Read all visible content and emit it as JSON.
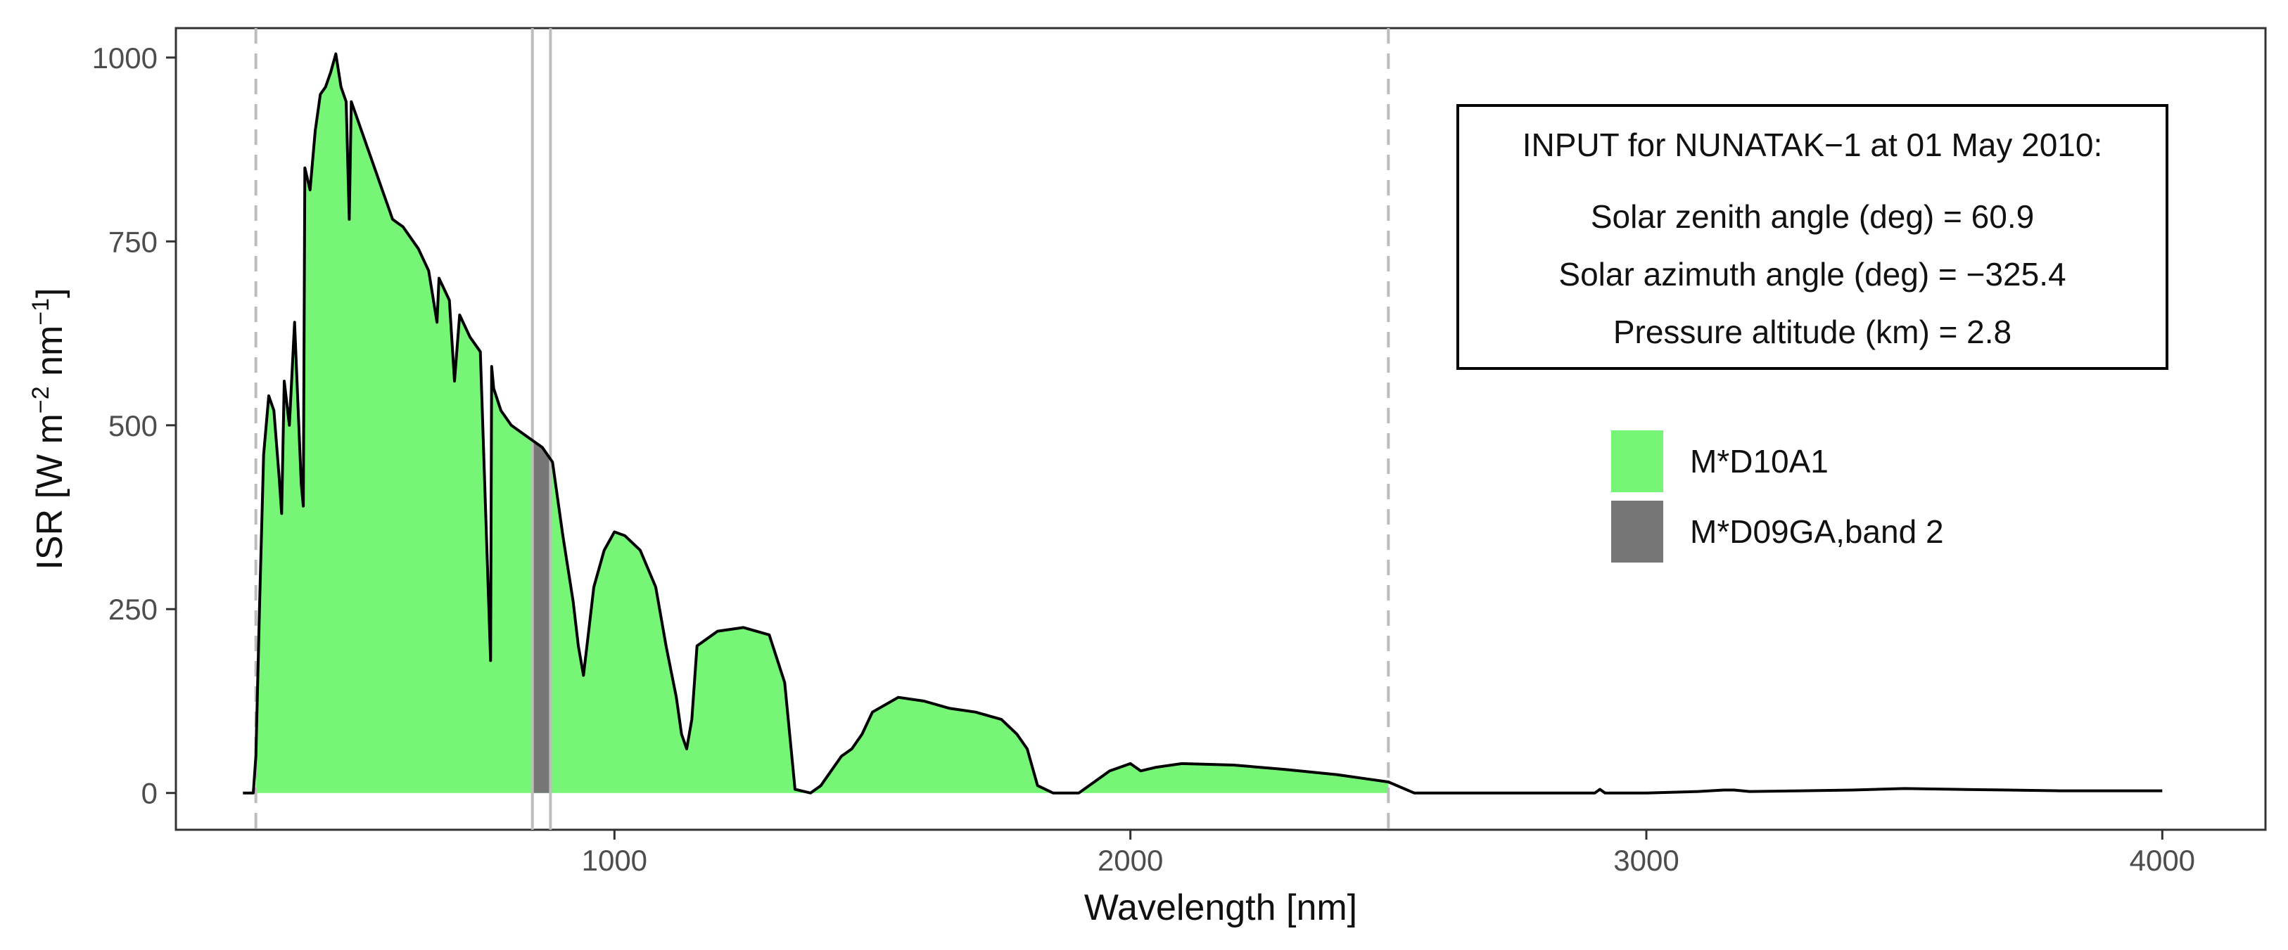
{
  "chart_data": {
    "type": "area",
    "xlabel": "Wavelength [nm]",
    "ylabel": {
      "prefix": "ISR [W m",
      "exp1": "−2",
      "mid": " nm",
      "exp2": "−1",
      "suffix": "]"
    },
    "xlim": [
      150,
      4200
    ],
    "ylim": [
      -50,
      1040
    ],
    "x_ticks": [
      {
        "value": 1000,
        "label": "1000"
      },
      {
        "value": 2000,
        "label": "2000"
      },
      {
        "value": 3000,
        "label": "3000"
      },
      {
        "value": 4000,
        "label": "4000"
      }
    ],
    "y_ticks": [
      {
        "value": 0,
        "label": "0"
      },
      {
        "value": 250,
        "label": "250"
      },
      {
        "value": 500,
        "label": "500"
      },
      {
        "value": 750,
        "label": "750"
      },
      {
        "value": 1000,
        "label": "1000"
      }
    ],
    "grid": false,
    "legend_position": "right",
    "legend": [
      {
        "label": "M*D10A1",
        "color": "#77f577"
      },
      {
        "label": "M*D09GA,band 2",
        "color": "#777777"
      }
    ],
    "annotation": {
      "title": "INPUT for NUNATAK−1 at 01 May 2010:",
      "lines": [
        "Solar zenith angle (deg) = 60.9",
        "Solar azimuth angle (deg) = −325.4",
        "Pressure altitude (km) = 2.8"
      ]
    },
    "reference_lines": {
      "dashed_x": [
        305,
        2500
      ],
      "solid_x": [
        841,
        876
      ]
    },
    "shaded_ranges": [
      {
        "series": "M*D10A1",
        "from": 305,
        "to": 2500,
        "color": "#77f577"
      },
      {
        "series": "M*D09GA,band 2",
        "from": 841,
        "to": 876,
        "color": "#777777"
      }
    ],
    "series": [
      {
        "name": "ISR",
        "color": "#000000",
        "x": [
          280,
          300,
          305,
          312,
          320,
          330,
          340,
          350,
          355,
          360,
          370,
          380,
          390,
          393,
          397,
          400,
          410,
          420,
          430,
          440,
          450,
          460,
          470,
          480,
          486,
          490,
          500,
          510,
          520,
          530,
          540,
          550,
          560,
          570,
          580,
          590,
          600,
          620,
          640,
          656,
          660,
          680,
          690,
          700,
          720,
          740,
          760,
          762,
          766,
          780,
          800,
          820,
          840,
          860,
          880,
          900,
          920,
          930,
          940,
          950,
          960,
          980,
          1000,
          1020,
          1050,
          1080,
          1100,
          1120,
          1130,
          1140,
          1150,
          1160,
          1200,
          1250,
          1300,
          1330,
          1350,
          1380,
          1400,
          1420,
          1440,
          1460,
          1480,
          1500,
          1550,
          1600,
          1650,
          1700,
          1750,
          1780,
          1800,
          1820,
          1850,
          1900,
          1940,
          1960,
          1980,
          2000,
          2010,
          2020,
          2050,
          2100,
          2200,
          2300,
          2400,
          2450,
          2500,
          2550,
          2600,
          2700,
          2800,
          2900,
          2910,
          2920,
          3000,
          3100,
          3150,
          3170,
          3200,
          3300,
          3400,
          3500,
          3600,
          3700,
          3800,
          3900,
          4000
        ],
        "y": [
          0,
          0,
          50,
          250,
          460,
          540,
          520,
          430,
          380,
          560,
          500,
          640,
          470,
          420,
          390,
          850,
          820,
          900,
          950,
          960,
          980,
          1005,
          960,
          940,
          780,
          940,
          920,
          900,
          880,
          860,
          840,
          820,
          800,
          780,
          775,
          770,
          760,
          740,
          710,
          640,
          700,
          670,
          560,
          650,
          620,
          600,
          180,
          580,
          550,
          520,
          500,
          490,
          480,
          470,
          450,
          350,
          260,
          200,
          160,
          220,
          280,
          330,
          355,
          350,
          330,
          280,
          200,
          130,
          80,
          60,
          100,
          200,
          220,
          225,
          215,
          150,
          5,
          0,
          10,
          30,
          50,
          60,
          80,
          110,
          130,
          125,
          115,
          110,
          100,
          80,
          60,
          10,
          0,
          0,
          20,
          30,
          35,
          40,
          35,
          30,
          35,
          40,
          38,
          32,
          25,
          20,
          15,
          0,
          0,
          0,
          0,
          0,
          5,
          0,
          0,
          2,
          4,
          4,
          2,
          3,
          4,
          6,
          5,
          4,
          3,
          3,
          3
        ]
      }
    ]
  }
}
